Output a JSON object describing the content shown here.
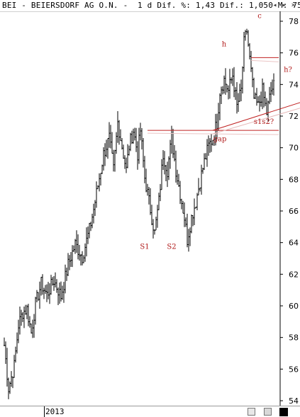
{
  "window": {
    "title": "BEI - BEIERSDORF AG O.N. -  1 d Dif. %: 1,43 Dif.: 1,050 M: 75,",
    "scroll_left_icon": "◂",
    "scroll_right_icon": "▸",
    "close_icon": "×"
  },
  "chart_data": {
    "type": "ohlc",
    "title": "BEI - BEIERSDORF AG O.N.",
    "ylim": [
      54,
      79
    ],
    "yticks": [
      "54",
      "56",
      "58",
      "60",
      "62",
      "64",
      "66",
      "68",
      "70",
      "72",
      "74",
      "76",
      "78"
    ],
    "xlabel_year": "2013",
    "colors": {
      "bars": "#000000",
      "annotation": "#b01818",
      "lines": "#c02020"
    },
    "waypoints": [
      [
        0,
        57.5
      ],
      [
        3,
        54.8
      ],
      [
        7,
        56.2
      ],
      [
        10,
        58.8
      ],
      [
        13,
        59.6
      ],
      [
        16,
        59.8
      ],
      [
        19,
        58.3
      ],
      [
        22,
        60.1
      ],
      [
        26,
        61.4
      ],
      [
        30,
        60.7
      ],
      [
        35,
        61.6
      ],
      [
        40,
        60.6
      ],
      [
        45,
        62.6
      ],
      [
        50,
        63.9
      ],
      [
        55,
        63.1
      ],
      [
        60,
        64.8
      ],
      [
        63,
        66.1
      ],
      [
        67,
        68.1
      ],
      [
        70,
        69.6
      ],
      [
        74,
        70.6
      ],
      [
        77,
        68.6
      ],
      [
        80,
        71.6
      ],
      [
        83,
        70.1
      ],
      [
        86,
        68.6
      ],
      [
        88,
        70.1
      ],
      [
        91,
        71.1
      ],
      [
        94,
        69.6
      ],
      [
        96,
        71.1
      ],
      [
        99,
        68.1
      ],
      [
        102,
        66.6
      ],
      [
        104,
        65.6
      ],
      [
        106,
        64.6
      ],
      [
        109,
        66.6
      ],
      [
        112,
        69.6
      ],
      [
        115,
        68.6
      ],
      [
        118,
        70.6
      ],
      [
        121,
        68.6
      ],
      [
        124,
        67.1
      ],
      [
        127,
        65.6
      ],
      [
        129,
        64.2
      ],
      [
        132,
        65.6
      ],
      [
        135,
        66.6
      ],
      [
        138,
        67.9
      ],
      [
        141,
        69.1
      ],
      [
        144,
        70.1
      ],
      [
        147,
        70.6
      ],
      [
        150,
        71.6
      ],
      [
        152,
        73.6
      ],
      [
        155,
        74.3
      ],
      [
        158,
        73.6
      ],
      [
        161,
        74.6
      ],
      [
        164,
        72.6
      ],
      [
        167,
        73.6
      ],
      [
        169,
        76.6
      ],
      [
        171,
        77.4
      ],
      [
        173,
        75.6
      ],
      [
        176,
        73.1
      ],
      [
        179,
        72.6
      ],
      [
        182,
        73.6
      ],
      [
        185,
        72.2
      ],
      [
        188,
        73.6
      ],
      [
        190,
        73.9
      ]
    ],
    "annotations": [
      {
        "label": "S1",
        "x": 99,
        "y": 63.6
      },
      {
        "label": "S2",
        "x": 118,
        "y": 63.6
      },
      {
        "label": "gap",
        "x": 152,
        "y": 70.4
      },
      {
        "label": "h",
        "x": 155,
        "y": 76.4
      },
      {
        "label": "c",
        "x": 180,
        "y": 78.2
      },
      {
        "label": "h?",
        "x": 200,
        "y": 74.8
      },
      {
        "label": "s1s2?",
        "x": 183,
        "y": 71.5
      }
    ],
    "lines": [
      {
        "kind": "support",
        "y": 71.1,
        "x_start": 101
      },
      {
        "kind": "neckline",
        "y": 75.7,
        "x_start": 174
      },
      {
        "kind": "trend",
        "points": [
          [
            147,
            71.1
          ],
          [
            210,
            72.9
          ]
        ]
      }
    ]
  }
}
